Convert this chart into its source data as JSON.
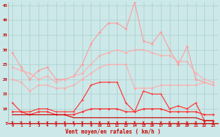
{
  "xlabel": "Vent moyen/en rafales ( km/h )",
  "background_color": "#cce8e8",
  "grid_color": "#aacccc",
  "x_ticks": [
    0,
    1,
    2,
    3,
    4,
    5,
    6,
    7,
    8,
    9,
    10,
    11,
    12,
    13,
    14,
    15,
    16,
    17,
    18,
    19,
    20,
    21,
    22,
    23
  ],
  "ylim": [
    5,
    46
  ],
  "yticks": [
    5,
    10,
    15,
    20,
    25,
    30,
    35,
    40,
    45
  ],
  "series": [
    {
      "name": "rafales_max",
      "color": "#ff9999",
      "linewidth": 0.8,
      "marker": "D",
      "markersize": 1.5,
      "values": [
        29,
        24,
        20,
        23,
        24,
        20,
        20,
        21,
        25,
        32,
        36,
        39,
        39,
        37,
        46,
        33,
        32,
        36,
        30,
        25,
        31,
        20,
        19,
        18
      ]
    },
    {
      "name": "rafales_mean_high",
      "color": "#ffaaaa",
      "linewidth": 0.8,
      "marker": "D",
      "markersize": 1.5,
      "values": [
        24,
        23,
        22,
        20,
        21,
        19,
        20,
        21,
        22,
        25,
        28,
        29,
        30,
        29,
        30,
        30,
        29,
        28,
        28,
        26,
        26,
        22,
        20,
        19
      ]
    },
    {
      "name": "rafales_mean_low",
      "color": "#ffaaaa",
      "linewidth": 0.8,
      "marker": "D",
      "markersize": 1.5,
      "values": [
        20,
        19,
        16,
        18,
        18,
        17,
        17,
        18,
        20,
        22,
        24,
        25,
        25,
        25,
        17,
        17,
        17,
        18,
        18,
        18,
        18,
        18,
        19,
        18
      ]
    },
    {
      "name": "vent_max",
      "color": "#ff3333",
      "linewidth": 0.9,
      "marker": "+",
      "markersize": 3.5,
      "values": [
        12,
        9,
        9,
        10,
        10,
        9,
        9,
        9,
        13,
        18,
        19,
        19,
        19,
        12,
        9,
        16,
        15,
        15,
        10,
        11,
        10,
        12,
        6,
        6
      ]
    },
    {
      "name": "vent_mean",
      "color": "#ff3333",
      "linewidth": 1.0,
      "marker": "D",
      "markersize": 1.5,
      "values": [
        9,
        9,
        8,
        9,
        9,
        8,
        8,
        8,
        9,
        10,
        10,
        10,
        10,
        9,
        9,
        10,
        10,
        10,
        9,
        9,
        9,
        9,
        8,
        8
      ]
    },
    {
      "name": "vent_min",
      "color": "#cc0000",
      "linewidth": 0.9,
      "marker": null,
      "markersize": 0,
      "values": [
        8,
        8,
        8,
        8,
        8,
        8,
        8,
        7,
        7,
        7,
        7,
        7,
        7,
        7,
        7,
        7,
        7,
        7,
        7,
        7,
        7,
        7,
        6,
        6
      ]
    }
  ],
  "arrow_color": "#cc0000",
  "arrow_size": 4
}
